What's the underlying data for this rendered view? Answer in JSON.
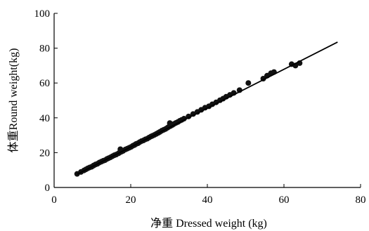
{
  "chart_data": {
    "type": "scatter",
    "xlabel": "净重 Dressed weight (kg)",
    "ylabel": "体重Round weight(kg)",
    "xlim": [
      0,
      80
    ],
    "ylim": [
      0,
      100
    ],
    "x_ticks": [
      0,
      20,
      40,
      60,
      80
    ],
    "y_ticks": [
      0,
      20,
      40,
      60,
      80,
      100
    ],
    "grid": false,
    "legend": "none",
    "colors": {
      "points": "#111111",
      "line": "#000000",
      "axes": "#000000"
    },
    "fit_line": {
      "x_start": 6,
      "y_start": 7.6,
      "x_end": 74,
      "y_end": 83.5
    },
    "points": [
      [
        6.0,
        7.8
      ],
      [
        7.0,
        8.9
      ],
      [
        7.8,
        9.8
      ],
      [
        8.3,
        10.4
      ],
      [
        8.8,
        11.0
      ],
      [
        9.3,
        11.5
      ],
      [
        9.8,
        11.9
      ],
      [
        10.3,
        12.6
      ],
      [
        10.8,
        13.2
      ],
      [
        11.3,
        13.6
      ],
      [
        11.8,
        14.3
      ],
      [
        12.3,
        14.8
      ],
      [
        12.8,
        15.3
      ],
      [
        13.3,
        15.7
      ],
      [
        13.8,
        16.4
      ],
      [
        14.2,
        16.8
      ],
      [
        14.7,
        17.3
      ],
      [
        15.2,
        17.9
      ],
      [
        15.7,
        18.5
      ],
      [
        16.2,
        18.9
      ],
      [
        16.8,
        19.6
      ],
      [
        17.2,
        20.2
      ],
      [
        17.6,
        20.6
      ],
      [
        17.3,
        22.0
      ],
      [
        18.0,
        21.0
      ],
      [
        18.6,
        21.8
      ],
      [
        19.1,
        22.3
      ],
      [
        19.6,
        22.8
      ],
      [
        20.1,
        23.3
      ],
      [
        20.6,
        24.0
      ],
      [
        21.0,
        24.4
      ],
      [
        21.4,
        25.0
      ],
      [
        21.9,
        25.4
      ],
      [
        22.3,
        26.0
      ],
      [
        22.8,
        26.6
      ],
      [
        23.3,
        27.0
      ],
      [
        23.8,
        27.6
      ],
      [
        24.3,
        28.0
      ],
      [
        24.8,
        28.7
      ],
      [
        25.3,
        29.3
      ],
      [
        25.7,
        29.7
      ],
      [
        26.2,
        30.2
      ],
      [
        26.7,
        30.8
      ],
      [
        27.2,
        31.4
      ],
      [
        27.6,
        31.9
      ],
      [
        28.1,
        32.6
      ],
      [
        28.6,
        33.1
      ],
      [
        29.1,
        33.6
      ],
      [
        29.6,
        34.3
      ],
      [
        30.0,
        34.9
      ],
      [
        30.4,
        35.3
      ],
      [
        30.2,
        37.0
      ],
      [
        30.9,
        35.9
      ],
      [
        31.3,
        36.5
      ],
      [
        31.8,
        37.1
      ],
      [
        32.3,
        37.6
      ],
      [
        32.8,
        38.3
      ],
      [
        33.3,
        38.8
      ],
      [
        33.9,
        39.5
      ],
      [
        35.1,
        40.8
      ],
      [
        36.3,
        42.2
      ],
      [
        37.4,
        43.4
      ],
      [
        38.4,
        44.6
      ],
      [
        39.4,
        45.8
      ],
      [
        40.4,
        46.6
      ],
      [
        41.3,
        47.8
      ],
      [
        42.3,
        48.9
      ],
      [
        43.3,
        50.1
      ],
      [
        44.1,
        51.0
      ],
      [
        44.9,
        52.1
      ],
      [
        45.9,
        53.2
      ],
      [
        46.9,
        54.3
      ],
      [
        48.4,
        55.9
      ],
      [
        50.7,
        60.0
      ],
      [
        54.6,
        62.5
      ],
      [
        55.6,
        64.2
      ],
      [
        56.6,
        65.6
      ],
      [
        57.4,
        66.3
      ],
      [
        62.0,
        70.8
      ],
      [
        63.0,
        70.0
      ],
      [
        64.1,
        71.4
      ]
    ]
  }
}
